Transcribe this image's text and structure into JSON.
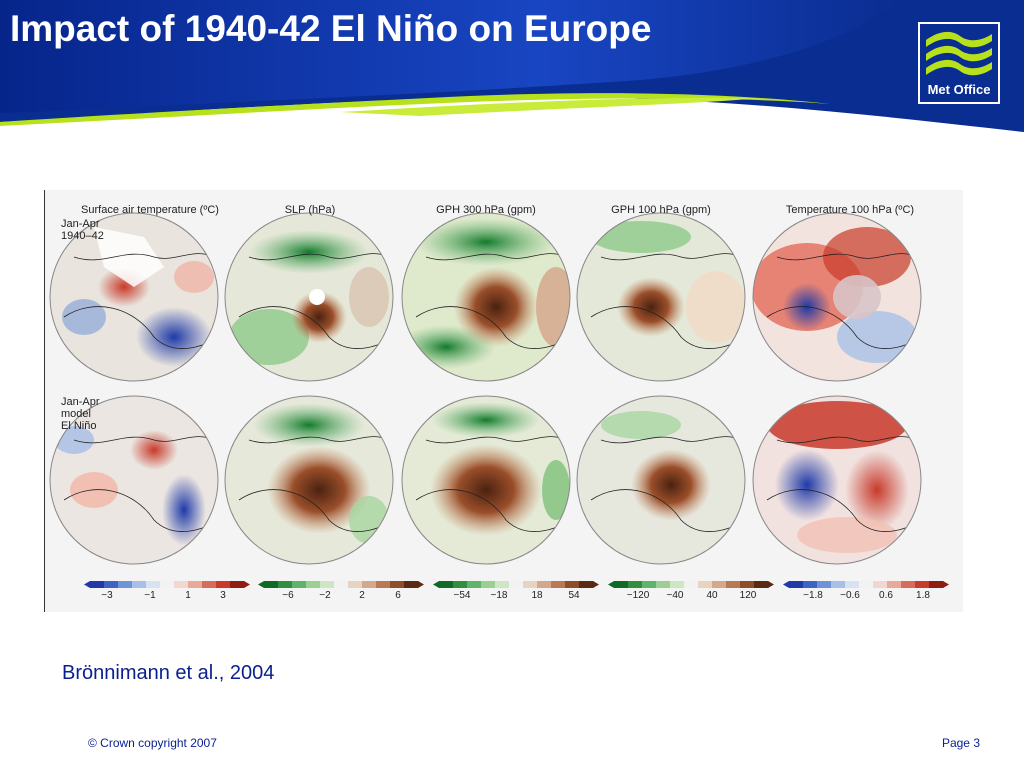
{
  "slide": {
    "title": "Impact of 1940-42 El Niño on Europe",
    "citation": "Brönnimann et al., 2004",
    "footer_left": "© Crown copyright 2007",
    "footer_right": "Page 3"
  },
  "logo": {
    "text": "Met Office",
    "icon": "met-office-waves-logo"
  },
  "figure": {
    "row_labels": [
      [
        "Jan-Apr",
        "1940–42"
      ],
      [
        "Jan-Apr",
        "model",
        "El Niño"
      ]
    ],
    "columns": [
      {
        "title": "Surface air temperature (ºC)",
        "ticks": [
          "−3",
          "−1",
          "1",
          "3"
        ]
      },
      {
        "title": "SLP (hPa)",
        "ticks": [
          "−6",
          "−2",
          "2",
          "6"
        ]
      },
      {
        "title": "GPH 300 hPa (gpm)",
        "ticks": [
          "−54",
          "−18",
          "18",
          "54"
        ]
      },
      {
        "title": "GPH 100 hPa (gpm)",
        "ticks": [
          "−120",
          "−40",
          "40",
          "120"
        ]
      },
      {
        "title": "Temperature 100 hPa (ºC)",
        "ticks": [
          "−1.8",
          "−0.6",
          "0.6",
          "1.8"
        ]
      }
    ]
  },
  "colors": {
    "header_blue": "#0a2d91",
    "header_accent": "#b7e11d",
    "text_blue": "#0a1f8f"
  }
}
